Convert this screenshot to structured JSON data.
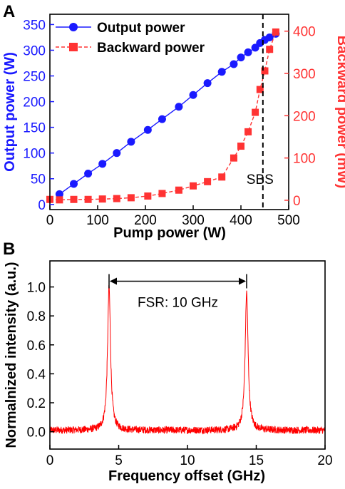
{
  "panels": {
    "a_label": "A",
    "b_label": "B"
  },
  "colors": {
    "output": "#1a1aff",
    "backward": "#ff3333",
    "spectrum": "#ff0000",
    "axis": "#000000"
  },
  "chart_data": [
    {
      "type": "line",
      "panel": "A",
      "xlabel": "Pump power (W)",
      "ylabel": "Output power (W)",
      "y2label": "Backward power (mW)",
      "xlim": [
        0,
        500
      ],
      "ylim": [
        -10,
        370
      ],
      "y2lim": [
        -22,
        440
      ],
      "xticks": [
        0,
        100,
        200,
        300,
        400,
        500
      ],
      "yticks": [
        0,
        50,
        100,
        150,
        200,
        250,
        300,
        350
      ],
      "y2ticks": [
        0,
        100,
        200,
        300,
        400
      ],
      "legend_position": "top-left",
      "annotation": {
        "text": "SBS",
        "x": 446,
        "style": "dashed vertical line"
      },
      "series": [
        {
          "name": "Output power",
          "axis": "left",
          "marker": "circle",
          "color": "#1a1aff",
          "x": [
            20,
            50,
            80,
            110,
            140,
            170,
            205,
            235,
            270,
            300,
            330,
            360,
            385,
            400,
            415,
            430,
            440,
            450,
            460,
            473
          ],
          "y": [
            20,
            40,
            60,
            79,
            100,
            122,
            145,
            166,
            190,
            213,
            236,
            258,
            273,
            286,
            296,
            305,
            314,
            320,
            325,
            332
          ]
        },
        {
          "name": "Backward power",
          "axis": "right",
          "marker": "square",
          "color": "#ff3333",
          "linestyle": "dashed",
          "x": [
            0,
            20,
            50,
            80,
            110,
            140,
            170,
            205,
            235,
            270,
            300,
            330,
            360,
            385,
            400,
            415,
            430,
            440,
            450,
            460,
            473
          ],
          "y": [
            2,
            1,
            2,
            2,
            3,
            4,
            6,
            10,
            16,
            24,
            34,
            44,
            55,
            100,
            128,
            162,
            208,
            262,
            306,
            357,
            398
          ]
        }
      ]
    },
    {
      "type": "line",
      "panel": "B",
      "xlabel": "Frequency offset (GHz)",
      "ylabel": "Normalnized intensity (a.u.)",
      "xlim": [
        0,
        20
      ],
      "ylim": [
        -0.12,
        1.18
      ],
      "xticks": [
        0,
        5,
        10,
        15,
        20
      ],
      "yticks": [
        0.0,
        0.2,
        0.4,
        0.6,
        0.8,
        1.0
      ],
      "color": "#ff0000",
      "noise_level": 0.01,
      "noise_amplitude": 0.025,
      "peaks": [
        {
          "center": 4.3,
          "height": 1.0
        },
        {
          "center": 14.3,
          "height": 0.96
        }
      ],
      "annotation": {
        "text": "FSR:  10 GHz",
        "from": 4.3,
        "to": 14.3,
        "y": 1.02
      }
    }
  ]
}
